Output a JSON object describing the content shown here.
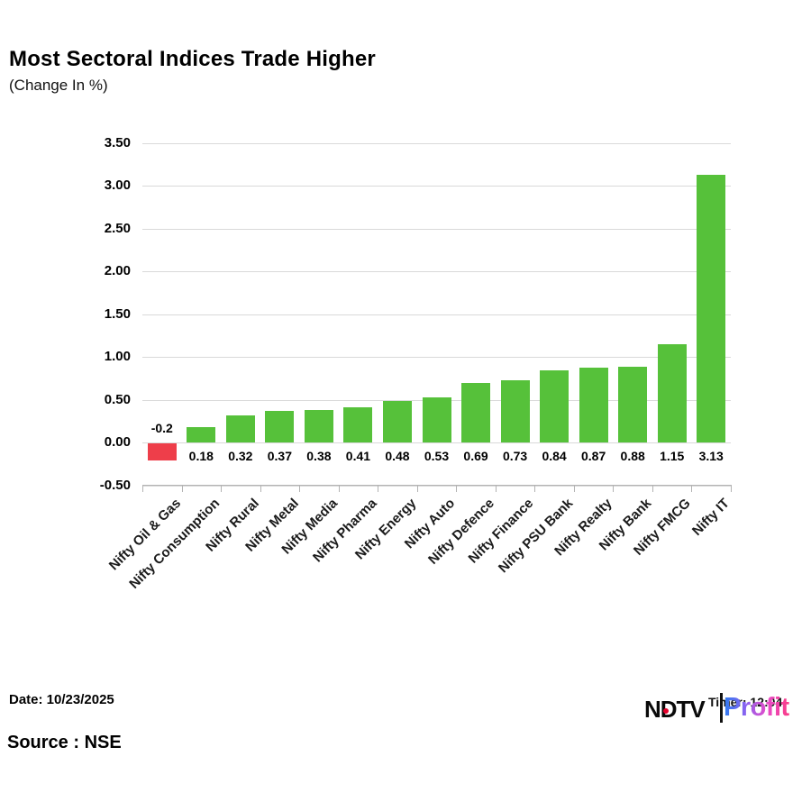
{
  "header": {
    "title": "Most Sectoral Indices Trade Higher",
    "subtitle": "(Change In %)"
  },
  "chart_data": {
    "type": "bar",
    "title": "Most Sectoral Indices Trade Higher",
    "subtitle": "(Change In %)",
    "categories": [
      "Nifty Oil & Gas",
      "Nifty Consumption",
      "Nifty Rural",
      "Nifty Metal",
      "Nifty Media",
      "Nifty Pharma",
      "Nifty Energy",
      "Nifty Auto",
      "Nifty Defence",
      "Nifty Finance",
      "Nifty PSU Bank",
      "Nifty Realty",
      "Nifty Bank",
      "Nifty FMCG",
      "Nifty IT"
    ],
    "values": [
      -0.2,
      0.18,
      0.32,
      0.37,
      0.38,
      0.41,
      0.48,
      0.53,
      0.69,
      0.73,
      0.84,
      0.87,
      0.88,
      1.15,
      3.13
    ],
    "value_labels": [
      "-0.2",
      "0.18",
      "0.32",
      "0.37",
      "0.38",
      "0.41",
      "0.48",
      "0.53",
      "0.69",
      "0.73",
      "0.84",
      "0.87",
      "0.88",
      "1.15",
      "3.13"
    ],
    "xlabel": "",
    "ylabel": "",
    "ylim": [
      -0.5,
      3.5
    ],
    "ytick_labels": [
      "3.50",
      "3.00",
      "2.50",
      "2.00",
      "1.50",
      "1.00",
      "0.50",
      "0.00",
      "-0.50"
    ],
    "grid": true,
    "legend": false,
    "colors": {
      "positive": "#56C13A",
      "negative": "#EE3E4A",
      "gridline": "#D9D9D9",
      "axis": "#B3B3B3",
      "text": "#000000"
    }
  },
  "footer": {
    "date_label": "Date: 10/23/2025",
    "source_label": "Source : NSE",
    "logo": {
      "ndtv_text": "NDTV",
      "profit_text": "Profit",
      "overlay_text": "Timer: 12:04",
      "red_dot_color": "#E4002B",
      "profit_gradient": [
        "#2D7CF0",
        "#8A63F0",
        "#E84BC8",
        "#FA3C86"
      ]
    }
  }
}
